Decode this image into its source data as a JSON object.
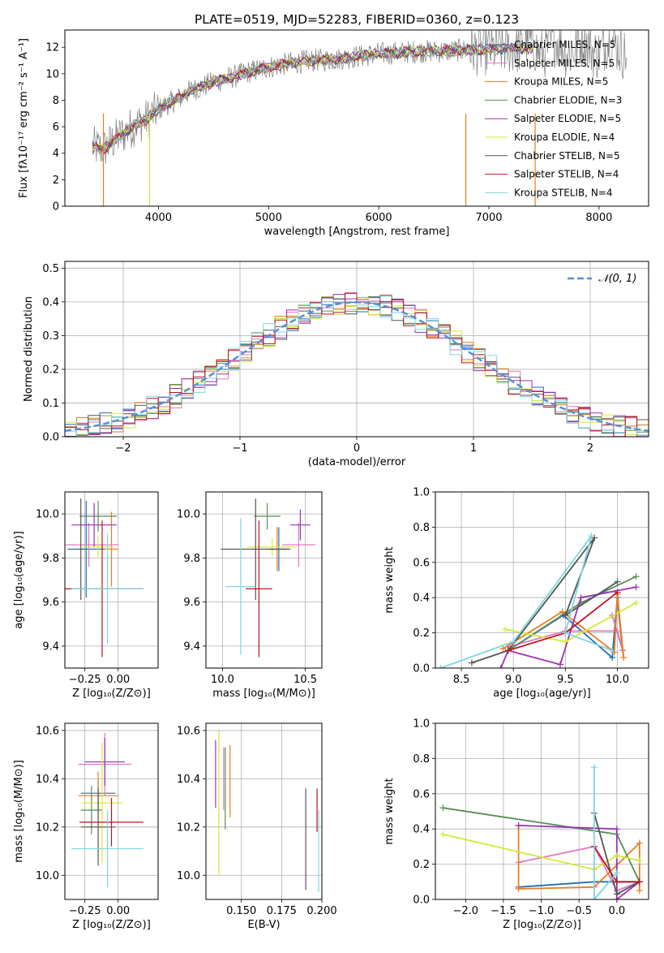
{
  "chart_data": [
    {
      "id": "spectrum",
      "type": "line",
      "title": "PLATE=0519, MJD=52283, FIBERID=0360, z=0.123",
      "xlabel": "wavelength [Angstrom, rest frame]",
      "ylabel": "Flux [fλ10⁻¹⁷ erg cm⁻² s⁻¹ A⁻¹]",
      "xlim": [
        3150,
        8450
      ],
      "ylim": [
        0,
        13.3
      ],
      "xticks": [
        4000,
        5000,
        6000,
        7000,
        8000
      ],
      "yticks": [
        0,
        2,
        4,
        6,
        8,
        10,
        12
      ],
      "grid": false,
      "legend_position": "top-right",
      "legend": [
        {
          "label": "Chabrier MILES, N_SSP=5",
          "color": "#1f6fb5"
        },
        {
          "label": "Salpeter MILES, N_SSP=5",
          "color": "#e377c2"
        },
        {
          "label": "Kroupa MILES, N_SSP=5",
          "color": "#e87d1e"
        },
        {
          "label": "Chabrier ELODIE, N_SSP=3",
          "color": "#5a8c5a"
        },
        {
          "label": "Salpeter ELODIE, N_SSP=5",
          "color": "#9b30b5"
        },
        {
          "label": "Kroupa ELODIE, N_SSP=4",
          "color": "#d4e83a"
        },
        {
          "label": "Chabrier STELIB, N_SSP=5",
          "color": "#555555"
        },
        {
          "label": "Salpeter STELIB, N_SSP=4",
          "color": "#c0141e"
        },
        {
          "label": "Kroupa STELIB, N_SSP=4",
          "color": "#7fd6e0"
        }
      ],
      "model_x": [
        3400,
        3500,
        3600,
        3700,
        3800,
        3900,
        4000,
        4100,
        4200,
        4300,
        4400,
        4500,
        4600,
        4700,
        4800,
        4900,
        5000,
        5200,
        5400,
        5600,
        5800,
        6000,
        6200,
        6400,
        6600,
        6800,
        7000,
        7200
      ],
      "model_y": [
        4.5,
        4.3,
        5.0,
        5.6,
        6.2,
        6.6,
        7.3,
        7.8,
        8.2,
        8.8,
        9.0,
        9.4,
        9.6,
        9.8,
        10.1,
        10.3,
        10.5,
        10.8,
        11.0,
        11.1,
        11.3,
        11.5,
        11.6,
        11.7,
        11.7,
        11.8,
        11.8,
        11.9
      ]
    },
    {
      "id": "residuals",
      "type": "histogram",
      "xlabel": "(data-model)/error",
      "ylabel": "Normed distribution",
      "xlim": [
        -2.5,
        2.5
      ],
      "ylim": [
        0,
        0.52
      ],
      "xticks": [
        -2,
        -1,
        0,
        1,
        2
      ],
      "yticks": [
        0.0,
        0.1,
        0.2,
        0.3,
        0.4,
        0.5
      ],
      "grid": true,
      "legend": [
        {
          "label": "𝒩(0, 1)",
          "color": "#5b8fd6"
        }
      ],
      "legend_position": "top-right",
      "reference_curve": "N(0,1)"
    },
    {
      "id": "age_vs_Z",
      "type": "scatter",
      "xlabel": "Z [log₁₀(Z/Z⊙)]",
      "ylabel": "age  [log₁₀(age/yr)]",
      "xlim": [
        -0.4,
        0.3
      ],
      "ylim": [
        9.3,
        10.1
      ],
      "xticks": [
        -0.25,
        0.0
      ],
      "yticks": [
        9.4,
        9.6,
        9.8,
        10.0
      ],
      "grid": true,
      "points": [
        {
          "x": -0.24,
          "y": 9.84,
          "xerr": 0.14,
          "yerr": 0.22,
          "color": "#1f6fb5"
        },
        {
          "x": -0.05,
          "y": 9.84,
          "xerr": 0.05,
          "yerr": 0.17,
          "color": "#e87d1e"
        },
        {
          "x": -0.22,
          "y": 9.86,
          "xerr": 0.22,
          "yerr": 0.1,
          "color": "#e377c2"
        },
        {
          "x": -0.15,
          "y": 9.99,
          "xerr": 0.14,
          "yerr": 0.07,
          "color": "#5a8c5a"
        },
        {
          "x": -0.18,
          "y": 9.95,
          "xerr": 0.17,
          "yerr": 0.1,
          "color": "#9b30b5"
        },
        {
          "x": -0.15,
          "y": 9.85,
          "xerr": 0.12,
          "yerr": 0.05,
          "color": "#d4e83a"
        },
        {
          "x": -0.28,
          "y": 9.84,
          "xerr": 0.02,
          "yerr": 0.23,
          "color": "#555555"
        },
        {
          "x": -0.12,
          "y": 9.66,
          "xerr": 0.31,
          "yerr": 0.31,
          "color": "#c0141e"
        },
        {
          "x": -0.08,
          "y": 9.66,
          "xerr": 0.27,
          "yerr": 0.25,
          "color": "#7fd6e0"
        }
      ]
    },
    {
      "id": "age_vs_mass",
      "type": "scatter",
      "xlabel": "mass [log₁₀(M/M⊙)]",
      "ylabel": "",
      "xlim": [
        9.9,
        10.6
      ],
      "ylim": [
        9.3,
        10.1
      ],
      "xticks": [
        10.0,
        10.5
      ],
      "yticks": [
        9.4,
        9.6,
        9.8,
        10.0
      ],
      "grid": true,
      "points": [
        {
          "x": 10.34,
          "y": 9.84,
          "xerr": 0.06,
          "yerr": 0.1,
          "color": "#1f6fb5"
        },
        {
          "x": 10.33,
          "y": 9.84,
          "xerr": 0.05,
          "yerr": 0.1,
          "color": "#e87d1e"
        },
        {
          "x": 10.46,
          "y": 9.86,
          "xerr": 0.1,
          "yerr": 0.1,
          "color": "#e377c2"
        },
        {
          "x": 10.27,
          "y": 9.99,
          "xerr": 0.08,
          "yerr": 0.06,
          "color": "#5a8c5a"
        },
        {
          "x": 10.47,
          "y": 9.95,
          "xerr": 0.06,
          "yerr": 0.07,
          "color": "#9b30b5"
        },
        {
          "x": 10.3,
          "y": 9.85,
          "xerr": 0.15,
          "yerr": 0.04,
          "color": "#d4e83a"
        },
        {
          "x": 10.2,
          "y": 9.84,
          "xerr": 0.21,
          "yerr": 0.23,
          "color": "#555555"
        },
        {
          "x": 10.22,
          "y": 9.66,
          "xerr": 0.08,
          "yerr": 0.31,
          "color": "#c0141e"
        },
        {
          "x": 10.11,
          "y": 9.67,
          "xerr": 0.09,
          "yerr": 0.31,
          "color": "#7fd6e0"
        }
      ]
    },
    {
      "id": "weight_vs_age",
      "type": "line",
      "xlabel": "age  [log₁₀(age/yr)]",
      "ylabel": "mass weight",
      "xlim": [
        8.25,
        10.3
      ],
      "ylim": [
        0,
        1.0
      ],
      "xticks": [
        8.5,
        9.0,
        9.5,
        10.0
      ],
      "yticks": [
        0.0,
        0.2,
        0.4,
        0.6,
        0.8,
        1.0
      ],
      "grid": true,
      "series": [
        {
          "color": "#1f6fb5",
          "points": [
            [
              8.95,
              0.1
            ],
            [
              9.48,
              0.3
            ],
            [
              9.95,
              0.06
            ],
            [
              10.0,
              0.4
            ],
            [
              10.05,
              0.1
            ]
          ]
        },
        {
          "color": "#e377c2",
          "points": [
            [
              8.95,
              0.12
            ],
            [
              9.5,
              0.21
            ],
            [
              10.0,
              0.21
            ],
            [
              10.05,
              0.1
            ],
            [
              9.95,
              0.3
            ]
          ]
        },
        {
          "color": "#e87d1e",
          "points": [
            [
              8.9,
              0.11
            ],
            [
              9.47,
              0.32
            ],
            [
              9.97,
              0.09
            ],
            [
              10.0,
              0.42
            ],
            [
              10.06,
              0.06
            ]
          ]
        },
        {
          "color": "#5a8c5a",
          "points": [
            [
              8.95,
              0.1
            ],
            [
              9.65,
              0.37
            ],
            [
              10.18,
              0.52
            ]
          ]
        },
        {
          "color": "#9b30b5",
          "points": [
            [
              8.88,
              0.0
            ],
            [
              8.95,
              0.1
            ],
            [
              9.45,
              0.02
            ],
            [
              9.65,
              0.4
            ],
            [
              10.18,
              0.46
            ]
          ]
        },
        {
          "color": "#d4e83a",
          "points": [
            [
              8.92,
              0.22
            ],
            [
              9.5,
              0.15
            ],
            [
              10.18,
              0.37
            ]
          ]
        },
        {
          "color": "#555555",
          "points": [
            [
              8.6,
              0.03
            ],
            [
              8.95,
              0.1
            ],
            [
              9.78,
              0.74
            ],
            [
              9.5,
              0.3
            ],
            [
              10.0,
              0.49
            ]
          ]
        },
        {
          "color": "#c0141e",
          "points": [
            [
              8.95,
              0.1
            ],
            [
              9.5,
              0.2
            ],
            [
              10.0,
              0.43
            ]
          ]
        },
        {
          "color": "#7fd6e0",
          "points": [
            [
              8.3,
              0.0
            ],
            [
              9.0,
              0.15
            ],
            [
              9.75,
              0.75
            ],
            [
              9.5,
              0.2
            ],
            [
              9.95,
              0.1
            ]
          ]
        }
      ]
    },
    {
      "id": "mass_vs_Z",
      "type": "scatter",
      "xlabel": "Z [log₁₀(Z/Z⊙)]",
      "ylabel": "mass [log₁₀(M/M⊙)]",
      "xlim": [
        -0.4,
        0.3
      ],
      "ylim": [
        9.9,
        10.63
      ],
      "xticks": [
        -0.25,
        0.0
      ],
      "yticks": [
        10.0,
        10.2,
        10.4,
        10.6
      ],
      "grid": true,
      "points": [
        {
          "x": -0.15,
          "y": 10.34,
          "xerr": 0.13,
          "yerr": 0.05,
          "color": "#1f6fb5"
        },
        {
          "x": -0.15,
          "y": 10.33,
          "xerr": 0.15,
          "yerr": 0.1,
          "color": "#e87d1e"
        },
        {
          "x": -0.1,
          "y": 10.46,
          "xerr": 0.2,
          "yerr": 0.13,
          "color": "#e377c2"
        },
        {
          "x": -0.2,
          "y": 10.27,
          "xerr": 0.08,
          "yerr": 0.1,
          "color": "#5a8c5a"
        },
        {
          "x": -0.1,
          "y": 10.47,
          "xerr": 0.15,
          "yerr": 0.1,
          "color": "#9b30b5"
        },
        {
          "x": -0.12,
          "y": 10.3,
          "xerr": 0.15,
          "yerr": 0.25,
          "color": "#d4e83a"
        },
        {
          "x": -0.15,
          "y": 10.2,
          "xerr": 0.13,
          "yerr": 0.16,
          "color": "#555555"
        },
        {
          "x": -0.05,
          "y": 10.22,
          "xerr": 0.24,
          "yerr": 0.1,
          "color": "#c0141e"
        },
        {
          "x": -0.08,
          "y": 10.11,
          "xerr": 0.27,
          "yerr": 0.16,
          "color": "#7fd6e0"
        }
      ]
    },
    {
      "id": "mass_vs_ebv",
      "type": "scatter",
      "xlabel": "E(B-V)",
      "ylabel": "",
      "xlim": [
        0.128,
        0.2
      ],
      "ylim": [
        9.9,
        10.63
      ],
      "xticks": [
        0.15,
        0.175,
        0.2
      ],
      "yticks": [
        10.0,
        10.2,
        10.4,
        10.6
      ],
      "grid": true,
      "points": [
        {
          "x": 0.134,
          "y": 10.42,
          "yerr": 0.14,
          "color": "#9b30b5"
        },
        {
          "x": 0.136,
          "y": 10.3,
          "yerr": 0.3,
          "color": "#d4e83a"
        },
        {
          "x": 0.139,
          "y": 10.4,
          "yerr": 0.13,
          "color": "#e377c2"
        },
        {
          "x": 0.14,
          "y": 10.36,
          "yerr": 0.17,
          "color": "#5a8c5a"
        },
        {
          "x": 0.143,
          "y": 10.39,
          "yerr": 0.15,
          "color": "#e87d1e"
        },
        {
          "x": 0.19,
          "y": 10.15,
          "yerr": 0.21,
          "color": "#555555"
        },
        {
          "x": 0.197,
          "y": 10.27,
          "yerr": 0.09,
          "color": "#c0141e"
        },
        {
          "x": 0.198,
          "y": 10.1,
          "yerr": 0.17,
          "color": "#7fd6e0"
        }
      ]
    },
    {
      "id": "weight_vs_Z",
      "type": "line",
      "xlabel": "Z [log₁₀(Z/Z⊙)]",
      "ylabel": "mass weight",
      "xlim": [
        -2.4,
        0.42
      ],
      "ylim": [
        0,
        1.0
      ],
      "xticks": [
        -2.0,
        -1.5,
        -1.0,
        -0.5,
        0.0
      ],
      "yticks": [
        0.0,
        0.2,
        0.4,
        0.6,
        0.8,
        1.0
      ],
      "grid": true,
      "series": [
        {
          "color": "#1f6fb5",
          "points": [
            [
              -1.3,
              0.07
            ],
            [
              -0.3,
              0.1
            ],
            [
              0.0,
              0.1
            ],
            [
              0.3,
              0.1
            ]
          ]
        },
        {
          "color": "#e377c2",
          "points": [
            [
              -1.3,
              0.21
            ],
            [
              -0.3,
              0.3
            ],
            [
              0.0,
              0.05
            ],
            [
              0.3,
              0.1
            ]
          ]
        },
        {
          "color": "#e87d1e",
          "points": [
            [
              -1.3,
              0.42
            ],
            [
              -1.3,
              0.06
            ],
            [
              -0.3,
              0.07
            ],
            [
              0.3,
              0.32
            ],
            [
              0.3,
              0.05
            ]
          ]
        },
        {
          "color": "#5a8c5a",
          "points": [
            [
              -2.3,
              0.52
            ],
            [
              0.0,
              0.37
            ],
            [
              0.3,
              0.1
            ]
          ]
        },
        {
          "color": "#9b30b5",
          "points": [
            [
              -1.3,
              0.42
            ],
            [
              0.0,
              0.4
            ],
            [
              0.0,
              0.0
            ],
            [
              0.3,
              0.1
            ]
          ]
        },
        {
          "color": "#d4e83a",
          "points": [
            [
              -2.3,
              0.37
            ],
            [
              -0.3,
              0.17
            ],
            [
              0.0,
              0.25
            ],
            [
              0.3,
              0.22
            ]
          ]
        },
        {
          "color": "#555555",
          "points": [
            [
              -0.3,
              0.49
            ],
            [
              0.0,
              0.03
            ],
            [
              0.3,
              0.1
            ]
          ]
        },
        {
          "color": "#c0141e",
          "points": [
            [
              -0.3,
              0.3
            ],
            [
              0.0,
              0.1
            ],
            [
              0.3,
              0.1
            ]
          ]
        },
        {
          "color": "#7fd6e0",
          "points": [
            [
              -0.3,
              0.75
            ],
            [
              -0.3,
              0.0
            ],
            [
              0.0,
              0.15
            ]
          ]
        }
      ]
    }
  ]
}
